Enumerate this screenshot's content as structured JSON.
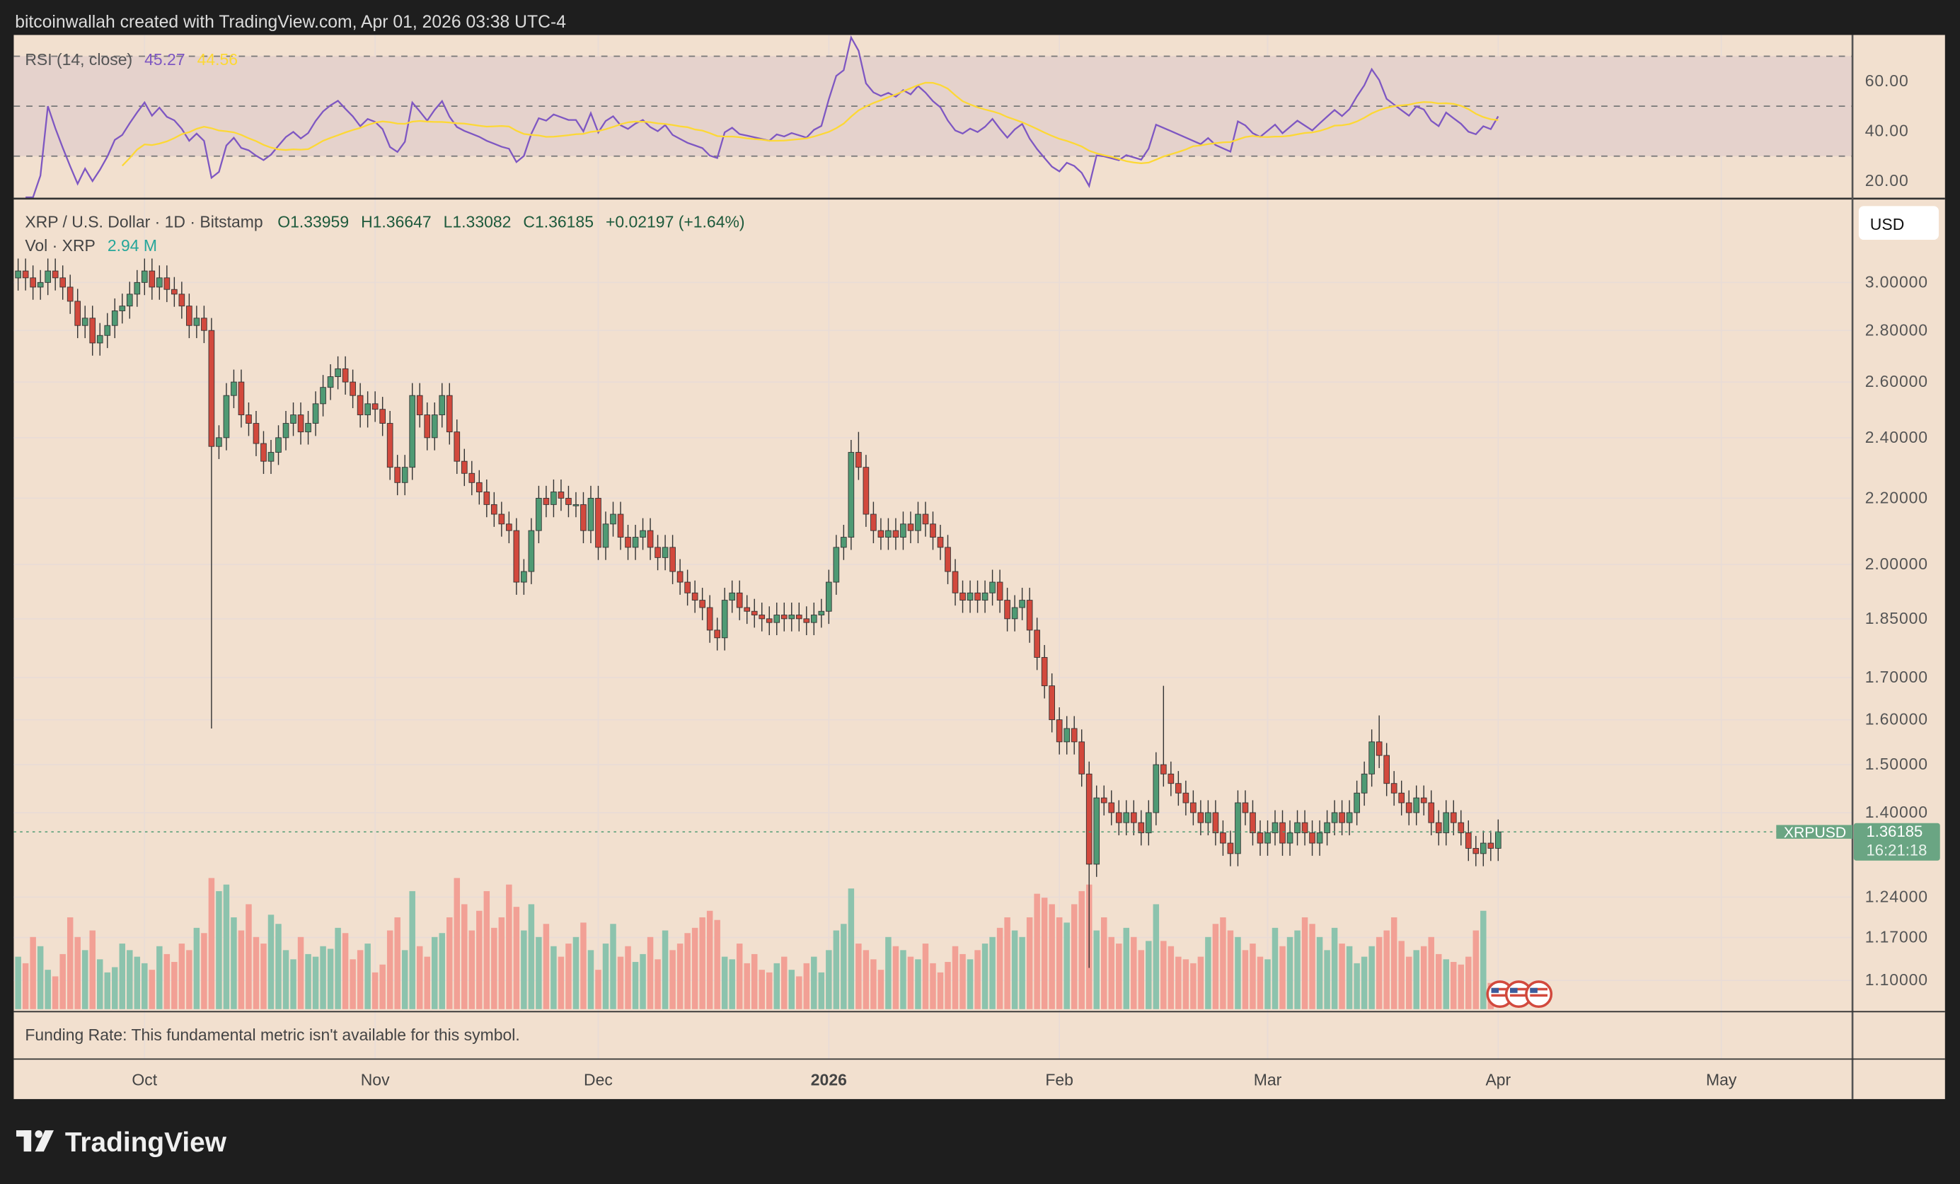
{
  "header": {
    "caption": "bitcoinwallah created with TradingView.com, Apr 01, 2026 03:38 UTC-4"
  },
  "rsi": {
    "label": "RSI (14, close)",
    "value": "45.27",
    "ma_value": "44.56",
    "ticks": [
      "60.00",
      "40.00",
      "20.00"
    ],
    "tick_values": [
      60,
      40,
      20
    ],
    "bands": [
      70,
      50,
      30
    ],
    "color": "#7e57c2",
    "ma_color": "#fdd835"
  },
  "legend": {
    "symbol": "XRP / U.S. Dollar · 1D · Bitstamp",
    "open": "O1.33959",
    "high": "H1.36647",
    "low": "L1.33082",
    "close": "C1.36185",
    "change": "+0.02197 (+1.64%)",
    "vol_label": "Vol · XRP",
    "vol_value": "2.94 M"
  },
  "price_axis": {
    "currency": "USD",
    "ticks": [
      "3.00000",
      "2.80000",
      "2.60000",
      "2.40000",
      "2.20000",
      "2.00000",
      "1.85000",
      "1.70000",
      "1.60000",
      "1.50000",
      "1.40000",
      "1.24000",
      "1.17000",
      "1.10000"
    ],
    "tick_values": [
      3.0,
      2.8,
      2.6,
      2.4,
      2.2,
      2.0,
      1.85,
      1.7,
      1.6,
      1.5,
      1.4,
      1.24,
      1.17,
      1.1
    ],
    "last_symbol": "XRPUSD",
    "last_price": "1.36185",
    "countdown": "16:21:18",
    "last_value": 1.36185
  },
  "funding": {
    "text": "Funding Rate: This fundamental metric isn't available for this symbol."
  },
  "time_axis": {
    "labels": [
      "Oct",
      "Nov",
      "Dec",
      "2026",
      "Feb",
      "Mar",
      "Apr",
      "May"
    ],
    "label_day_index": [
      17,
      48,
      78,
      109,
      140,
      168,
      199,
      229
    ]
  },
  "branding": {
    "logo": "TradingView"
  },
  "colors": {
    "up": "#4f9a74",
    "down": "#d2493d",
    "vol_up": "#8cc3ad",
    "vol_down": "#f2a095",
    "background": "#f2e0cf"
  },
  "chart_data": {
    "type": "candlestick",
    "title": "XRP / U.S. Dollar · 1D · Bitstamp",
    "scale": "log",
    "start_date": "2025-09-14",
    "closes": [
      3.05,
      3.02,
      2.98,
      3.0,
      3.05,
      3.02,
      2.98,
      2.92,
      2.82,
      2.85,
      2.75,
      2.78,
      2.82,
      2.88,
      2.9,
      2.95,
      3.0,
      3.05,
      2.98,
      3.02,
      2.97,
      2.95,
      2.9,
      2.82,
      2.85,
      2.8,
      2.37,
      2.4,
      2.55,
      2.6,
      2.48,
      2.45,
      2.38,
      2.32,
      2.35,
      2.4,
      2.45,
      2.48,
      2.42,
      2.45,
      2.52,
      2.58,
      2.62,
      2.65,
      2.6,
      2.55,
      2.48,
      2.52,
      2.5,
      2.45,
      2.3,
      2.25,
      2.3,
      2.55,
      2.48,
      2.4,
      2.48,
      2.55,
      2.42,
      2.32,
      2.28,
      2.25,
      2.22,
      2.18,
      2.15,
      2.12,
      2.1,
      1.95,
      1.98,
      2.1,
      2.2,
      2.18,
      2.22,
      2.2,
      2.18,
      2.18,
      2.1,
      2.2,
      2.05,
      2.12,
      2.15,
      2.08,
      2.05,
      2.08,
      2.1,
      2.05,
      2.02,
      2.05,
      1.98,
      1.95,
      1.92,
      1.9,
      1.88,
      1.82,
      1.8,
      1.9,
      1.92,
      1.88,
      1.87,
      1.86,
      1.85,
      1.84,
      1.86,
      1.85,
      1.86,
      1.85,
      1.84,
      1.86,
      1.87,
      1.95,
      2.05,
      2.08,
      2.35,
      2.3,
      2.15,
      2.1,
      2.08,
      2.1,
      2.08,
      2.12,
      2.1,
      2.15,
      2.12,
      2.08,
      2.05,
      1.98,
      1.92,
      1.9,
      1.92,
      1.9,
      1.92,
      1.95,
      1.9,
      1.85,
      1.88,
      1.9,
      1.82,
      1.75,
      1.68,
      1.6,
      1.55,
      1.58,
      1.55,
      1.48,
      1.3,
      1.43,
      1.42,
      1.4,
      1.38,
      1.4,
      1.38,
      1.36,
      1.4,
      1.5,
      1.48,
      1.46,
      1.44,
      1.42,
      1.4,
      1.38,
      1.4,
      1.36,
      1.34,
      1.32,
      1.42,
      1.4,
      1.36,
      1.34,
      1.36,
      1.38,
      1.34,
      1.36,
      1.38,
      1.36,
      1.34,
      1.36,
      1.38,
      1.4,
      1.38,
      1.4,
      1.44,
      1.48,
      1.55,
      1.52,
      1.46,
      1.44,
      1.42,
      1.4,
      1.43,
      1.42,
      1.38,
      1.36,
      1.4,
      1.38,
      1.36,
      1.33,
      1.32,
      1.34,
      1.33,
      1.36185
    ],
    "low_overrides": {
      "26": 1.58,
      "144": 1.12
    },
    "high_overrides": {
      "113": 2.42,
      "154": 1.68,
      "183": 1.61
    },
    "volumes": [
      40,
      35,
      55,
      48,
      30,
      25,
      42,
      70,
      55,
      45,
      60,
      38,
      28,
      32,
      50,
      45,
      40,
      35,
      30,
      48,
      42,
      36,
      50,
      45,
      62,
      58,
      100,
      90,
      95,
      70,
      60,
      80,
      55,
      50,
      72,
      65,
      45,
      38,
      55,
      42,
      40,
      48,
      46,
      62,
      58,
      38,
      45,
      50,
      28,
      34,
      60,
      70,
      45,
      90,
      48,
      40,
      55,
      58,
      70,
      100,
      80,
      60,
      75,
      90,
      62,
      70,
      95,
      78,
      60,
      80,
      55,
      65,
      48,
      40,
      50,
      55,
      66,
      45,
      30,
      50,
      65,
      40,
      48,
      36,
      42,
      55,
      38,
      60,
      45,
      50,
      58,
      62,
      70,
      75,
      68,
      40,
      38,
      50,
      35,
      42,
      30,
      28,
      35,
      40,
      30,
      25,
      35,
      40,
      28,
      45,
      60,
      65,
      92,
      50,
      45,
      38,
      30,
      55,
      48,
      45,
      40,
      38,
      50,
      35,
      28,
      36,
      48,
      42,
      38,
      45,
      50,
      55,
      62,
      70,
      60,
      55,
      70,
      88,
      85,
      80,
      70,
      66,
      80,
      90,
      95,
      60,
      70,
      55,
      50,
      62,
      55,
      45,
      52,
      80,
      52,
      48,
      40,
      38,
      35,
      40,
      55,
      65,
      70,
      60,
      55,
      45,
      50,
      40,
      38,
      62,
      48,
      55,
      60,
      70,
      65,
      55,
      45,
      62,
      50,
      48,
      35,
      40,
      48,
      55,
      60,
      70,
      52,
      40,
      45,
      48,
      55,
      42,
      38,
      36,
      34,
      40,
      60,
      75,
      20
    ]
  }
}
